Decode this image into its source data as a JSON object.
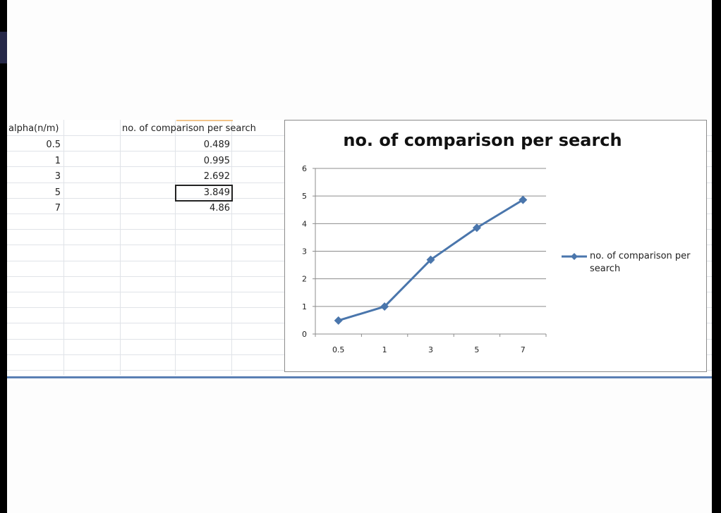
{
  "sheet": {
    "col_a_header": "alpha(n/m)",
    "col_b_header": "no. of comparison per search",
    "rows": [
      {
        "a": "0.5",
        "b": "0.489"
      },
      {
        "a": "1",
        "b": "0.995"
      },
      {
        "a": "3",
        "b": "2.692"
      },
      {
        "a": "5",
        "b": "3.849"
      },
      {
        "a": "7",
        "b": "4.86"
      }
    ],
    "selected_row_index": 3
  },
  "colors": {
    "series": "#4a76ac",
    "gridline": "#8c8c8c",
    "cell_grid": "#e0e3e8"
  },
  "chart_data": {
    "type": "line",
    "title": "no. of comparison per search",
    "categories": [
      "0.5",
      "1",
      "3",
      "5",
      "7"
    ],
    "series": [
      {
        "name": "no. of comparison per search",
        "values": [
          0.489,
          0.995,
          2.692,
          3.849,
          4.86
        ],
        "marker": "diamond"
      }
    ],
    "ylim": [
      0,
      6
    ],
    "yticks": [
      "0",
      "1",
      "2",
      "3",
      "4",
      "5",
      "6"
    ],
    "xlabel": "",
    "ylabel": "",
    "grid": "horizontal",
    "legend": "right"
  }
}
